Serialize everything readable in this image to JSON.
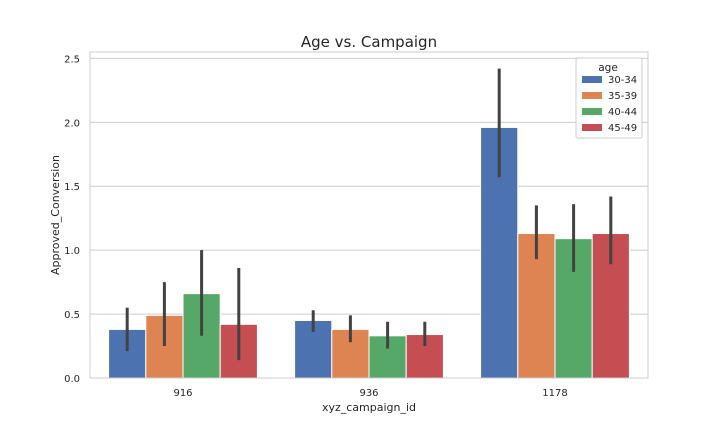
{
  "chart_data": {
    "type": "bar",
    "title": "Age vs. Campaign",
    "xlabel": "xyz_campaign_id",
    "ylabel": "Approved_Conversion",
    "categories": [
      "916",
      "936",
      "1178"
    ],
    "ylim": [
      0,
      2.55
    ],
    "yticks": [
      0.0,
      0.5,
      1.0,
      1.5,
      2.0,
      2.5
    ],
    "ytick_labels": [
      "0.0",
      "0.5",
      "1.0",
      "1.5",
      "2.0",
      "2.5"
    ],
    "grid": true,
    "legend": {
      "title": "age",
      "placement": "top-right"
    },
    "series": [
      {
        "name": "30-34",
        "color": "#4c72b0",
        "values": [
          0.38,
          0.45,
          1.96
        ],
        "err_low": [
          0.21,
          0.36,
          1.57
        ],
        "err_high": [
          0.55,
          0.53,
          2.42
        ]
      },
      {
        "name": "35-39",
        "color": "#dd8452",
        "values": [
          0.49,
          0.38,
          1.13
        ],
        "err_low": [
          0.25,
          0.28,
          0.93
        ],
        "err_high": [
          0.75,
          0.49,
          1.35
        ]
      },
      {
        "name": "40-44",
        "color": "#55a868",
        "values": [
          0.66,
          0.33,
          1.09
        ],
        "err_low": [
          0.33,
          0.23,
          0.83
        ],
        "err_high": [
          1.0,
          0.44,
          1.36
        ]
      },
      {
        "name": "45-49",
        "color": "#c44e52",
        "values": [
          0.42,
          0.34,
          1.13
        ],
        "err_low": [
          0.14,
          0.25,
          0.89
        ],
        "err_high": [
          0.86,
          0.44,
          1.42
        ]
      }
    ]
  }
}
